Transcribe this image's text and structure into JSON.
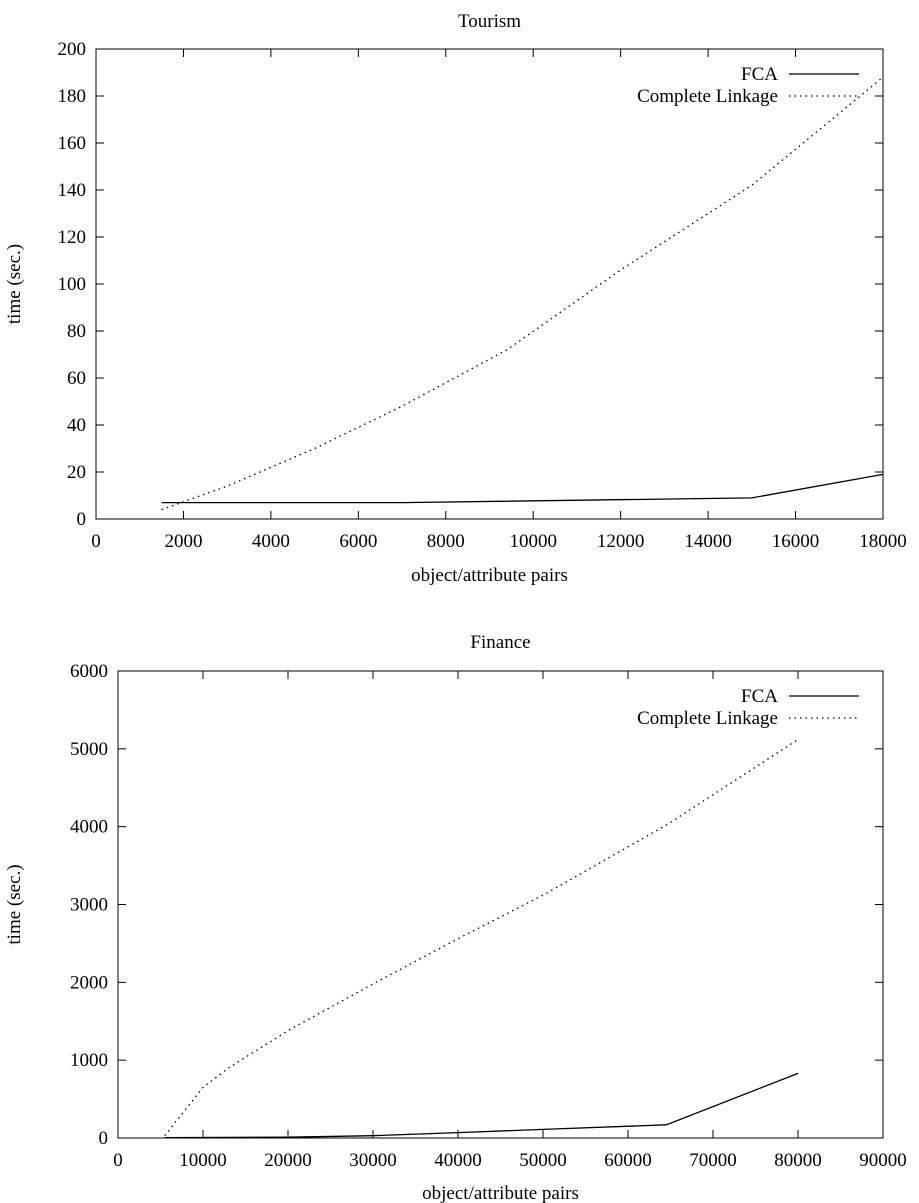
{
  "chart_data": [
    {
      "type": "line",
      "title": "Tourism",
      "xlabel": "object/attribute pairs",
      "ylabel": "time (sec.)",
      "xlim": [
        0,
        18000
      ],
      "ylim": [
        0,
        200
      ],
      "xticks": [
        0,
        2000,
        4000,
        6000,
        8000,
        10000,
        12000,
        14000,
        16000,
        18000
      ],
      "yticks": [
        0,
        20,
        40,
        60,
        80,
        100,
        120,
        140,
        160,
        180,
        200
      ],
      "legend_position": "top-right",
      "series": [
        {
          "name": "FCA",
          "style": "solid",
          "x": [
            1500,
            7000,
            15000,
            18000
          ],
          "y": [
            7,
            7,
            9,
            19
          ]
        },
        {
          "name": "Complete Linkage",
          "style": "dotted",
          "x": [
            1500,
            3000,
            5000,
            7000,
            9400,
            12000,
            15000,
            18000
          ],
          "y": [
            4,
            14,
            30,
            48,
            72,
            106,
            142,
            188
          ]
        }
      ]
    },
    {
      "type": "line",
      "title": "Finance",
      "xlabel": "object/attribute pairs",
      "ylabel": "time (sec.)",
      "xlim": [
        0,
        90000
      ],
      "ylim": [
        0,
        6000
      ],
      "xticks": [
        0,
        10000,
        20000,
        30000,
        40000,
        50000,
        60000,
        70000,
        80000,
        90000
      ],
      "yticks": [
        0,
        1000,
        2000,
        3000,
        4000,
        5000,
        6000
      ],
      "legend_position": "top-right",
      "series": [
        {
          "name": "FCA",
          "style": "solid",
          "x": [
            5500,
            20000,
            30000,
            40000,
            50000,
            64500,
            80000
          ],
          "y": [
            5,
            10,
            30,
            70,
            110,
            170,
            830
          ]
        },
        {
          "name": "Complete Linkage",
          "style": "dotted",
          "x": [
            5500,
            10000,
            13000,
            20000,
            30000,
            40000,
            50000,
            64500,
            80000
          ],
          "y": [
            30,
            650,
            900,
            1380,
            1980,
            2560,
            3120,
            4020,
            5120
          ]
        }
      ]
    }
  ]
}
